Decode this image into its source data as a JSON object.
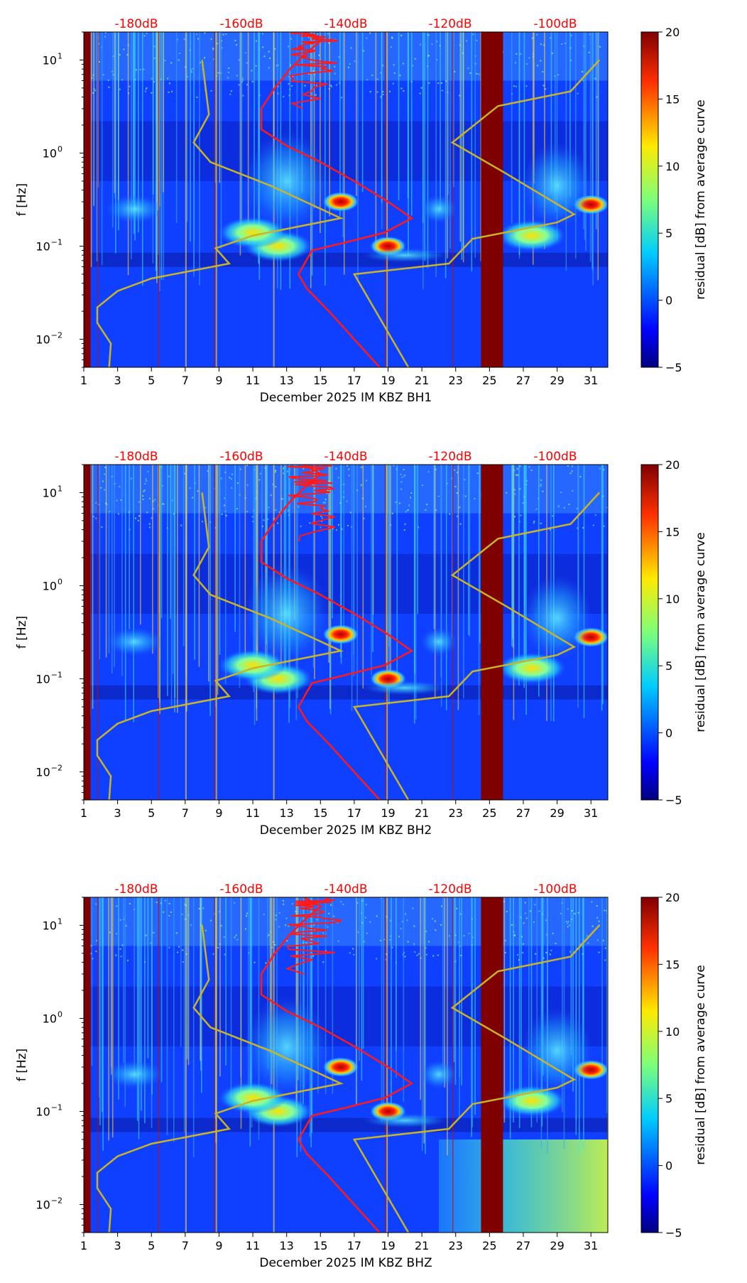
{
  "colors": {
    "ref_curve": "#ff1a1a",
    "model_curve": "#c8b428",
    "db_label": "#ff0000",
    "gap": "#7f0000"
  },
  "chart_data": [
    {
      "type": "heatmap",
      "channel": "BH1",
      "xlabel": "December 2025 IM KBZ  BH1",
      "ylabel": "f [Hz]",
      "x_ticks": [
        "1",
        "3",
        "5",
        "7",
        "9",
        "11",
        "13",
        "15",
        "17",
        "19",
        "21",
        "23",
        "25",
        "27",
        "29",
        "31"
      ],
      "y_ticks": [
        {
          "base": "10",
          "exp": "1"
        },
        {
          "base": "10",
          "exp": "0"
        },
        {
          "base": "10",
          "exp": "−1"
        },
        {
          "base": "10",
          "exp": "−2"
        }
      ],
      "top_labels": [
        "-180dB",
        "-160dB",
        "-140dB",
        "-120dB",
        "-100dB"
      ],
      "colorbar": {
        "label": "residual [dB] from average curve",
        "ticks": [
          "20",
          "15",
          "10",
          "5",
          "0",
          "−5"
        ],
        "range": [
          -5,
          20
        ]
      },
      "xlim": [
        1,
        32
      ],
      "ylim_hz": [
        0.005,
        20
      ],
      "data_gap_days": [
        24.5,
        25.8
      ],
      "event_blobs": [
        {
          "day": 19,
          "freq_hz": 0.1,
          "residual_db": 20
        },
        {
          "day": 16.2,
          "freq_hz": 0.3,
          "residual_db": 18
        },
        {
          "day": 31,
          "freq_hz": 0.28,
          "residual_db": 17
        },
        {
          "day": 12.5,
          "freq_hz": 0.1,
          "residual_db": 12
        },
        {
          "day": 11,
          "freq_hz": 0.14,
          "residual_db": 10
        },
        {
          "day": 27.5,
          "freq_hz": 0.13,
          "residual_db": 10
        }
      ],
      "low_freq_noise": false
    },
    {
      "type": "heatmap",
      "channel": "BH2",
      "xlabel": "December 2025 IM KBZ  BH2",
      "ylabel": "f [Hz]",
      "x_ticks": [
        "1",
        "3",
        "5",
        "7",
        "9",
        "11",
        "13",
        "15",
        "17",
        "19",
        "21",
        "23",
        "25",
        "27",
        "29",
        "31"
      ],
      "y_ticks": [
        {
          "base": "10",
          "exp": "1"
        },
        {
          "base": "10",
          "exp": "0"
        },
        {
          "base": "10",
          "exp": "−1"
        },
        {
          "base": "10",
          "exp": "−2"
        }
      ],
      "top_labels": [
        "-180dB",
        "-160dB",
        "-140dB",
        "-120dB",
        "-100dB"
      ],
      "colorbar": {
        "label": "residual [dB] from average curve",
        "ticks": [
          "20",
          "15",
          "10",
          "5",
          "0",
          "−5"
        ],
        "range": [
          -5,
          20
        ]
      },
      "xlim": [
        1,
        32
      ],
      "ylim_hz": [
        0.005,
        20
      ],
      "data_gap_days": [
        24.5,
        25.8
      ],
      "event_blobs": [
        {
          "day": 19,
          "freq_hz": 0.1,
          "residual_db": 20
        },
        {
          "day": 16.2,
          "freq_hz": 0.3,
          "residual_db": 18
        },
        {
          "day": 31,
          "freq_hz": 0.28,
          "residual_db": 17
        },
        {
          "day": 12.5,
          "freq_hz": 0.1,
          "residual_db": 12
        },
        {
          "day": 11,
          "freq_hz": 0.14,
          "residual_db": 10
        },
        {
          "day": 27.5,
          "freq_hz": 0.13,
          "residual_db": 10
        }
      ],
      "low_freq_noise": false
    },
    {
      "type": "heatmap",
      "channel": "BHZ",
      "xlabel": "December 2025 IM KBZ  BHZ",
      "ylabel": "f [Hz]",
      "x_ticks": [
        "1",
        "3",
        "5",
        "7",
        "9",
        "11",
        "13",
        "15",
        "17",
        "19",
        "21",
        "23",
        "25",
        "27",
        "29",
        "31"
      ],
      "y_ticks": [
        {
          "base": "10",
          "exp": "1"
        },
        {
          "base": "10",
          "exp": "0"
        },
        {
          "base": "10",
          "exp": "−1"
        },
        {
          "base": "10",
          "exp": "−2"
        }
      ],
      "top_labels": [
        "-180dB",
        "-160dB",
        "-140dB",
        "-120dB",
        "-100dB"
      ],
      "colorbar": {
        "label": "residual [dB] from average curve",
        "ticks": [
          "20",
          "15",
          "10",
          "5",
          "0",
          "−5"
        ],
        "range": [
          -5,
          20
        ]
      },
      "xlim": [
        1,
        32
      ],
      "ylim_hz": [
        0.005,
        20
      ],
      "data_gap_days": [
        24.5,
        25.8
      ],
      "event_blobs": [
        {
          "day": 19,
          "freq_hz": 0.1,
          "residual_db": 20
        },
        {
          "day": 16.2,
          "freq_hz": 0.3,
          "residual_db": 18
        },
        {
          "day": 31,
          "freq_hz": 0.28,
          "residual_db": 17
        },
        {
          "day": 12.5,
          "freq_hz": 0.1,
          "residual_db": 12
        },
        {
          "day": 11,
          "freq_hz": 0.14,
          "residual_db": 10
        },
        {
          "day": 27.5,
          "freq_hz": 0.13,
          "residual_db": 10
        }
      ],
      "low_freq_noise": true
    }
  ]
}
